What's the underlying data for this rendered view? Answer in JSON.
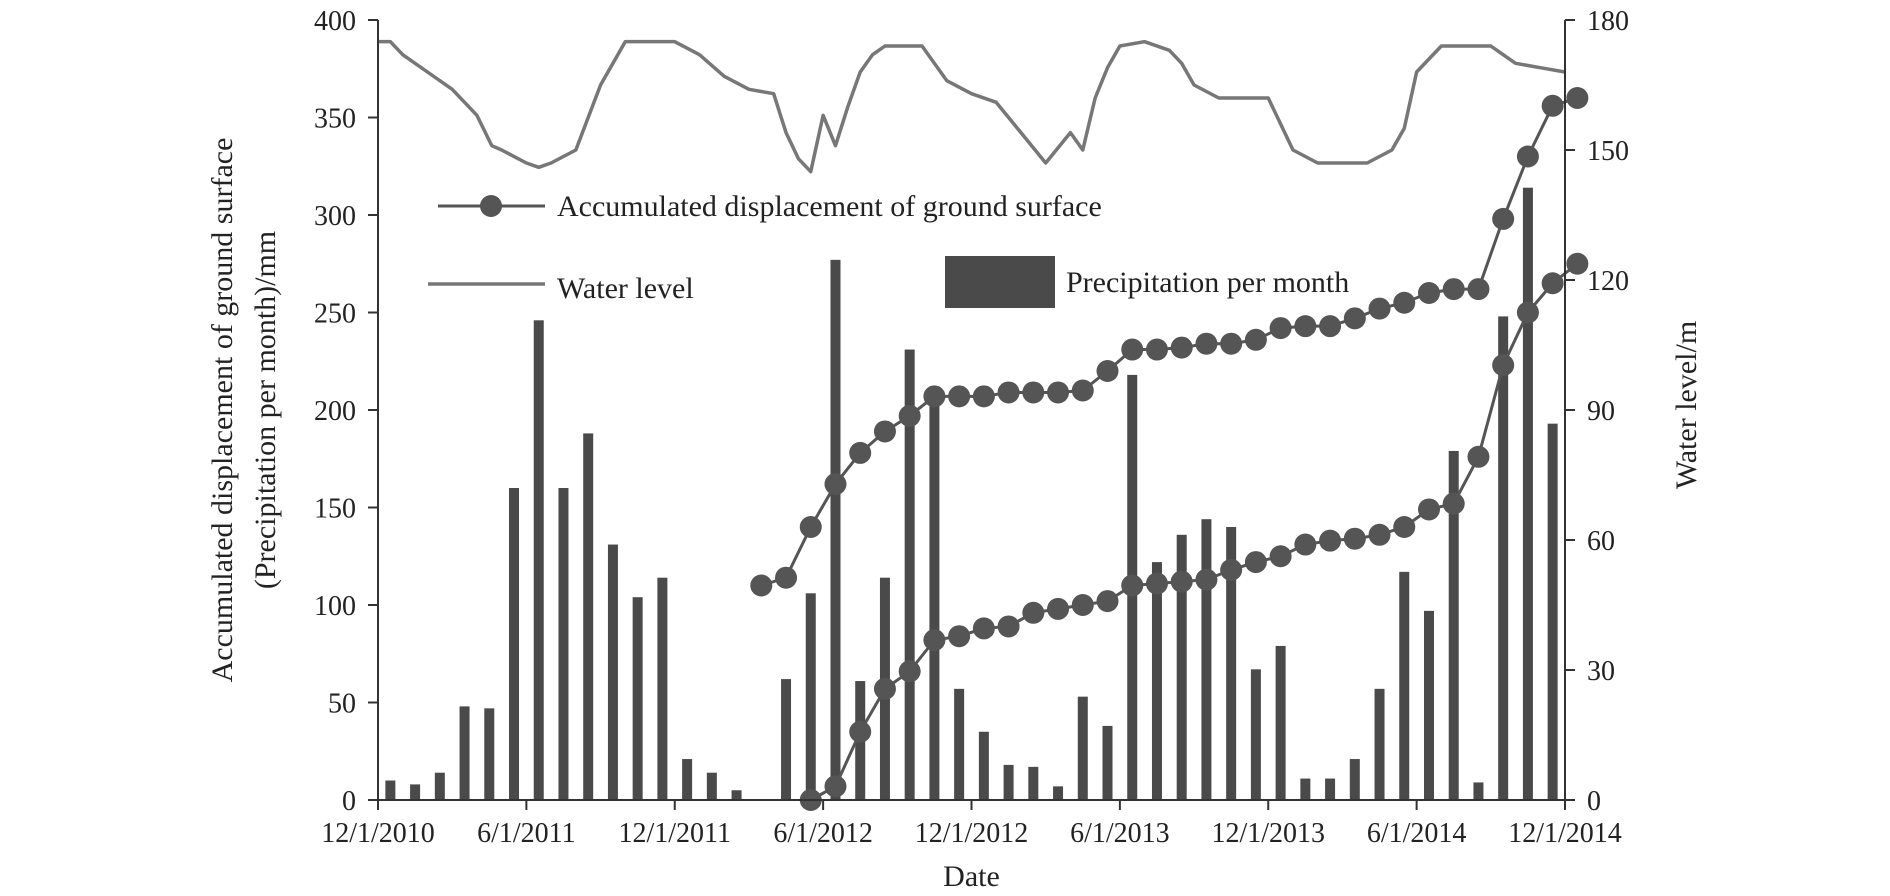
{
  "chart_data": {
    "type": "bar+line",
    "xlabel": "Date",
    "ylabel_left_line1": "Accumulated displacement of ground surface",
    "ylabel_left_line2": "(Precipitation per month)/mm",
    "ylabel_right": "Water level/m",
    "ylim_left": [
      0,
      400
    ],
    "ylim_right": [
      0,
      180
    ],
    "left_ticks": [
      "0",
      "50",
      "100",
      "150",
      "200",
      "250",
      "300",
      "350",
      "400"
    ],
    "right_ticks": [
      "0",
      "30",
      "60",
      "90",
      "120",
      "150",
      "180"
    ],
    "x_tick_labels": [
      "12/1/2010",
      "6/1/2011",
      "12/1/2011",
      "6/1/2012",
      "12/1/2012",
      "6/1/2013",
      "12/1/2013",
      "6/1/2014",
      "12/1/2014"
    ],
    "x_tick_months": [
      0,
      6,
      12,
      18,
      24,
      30,
      36,
      42,
      48
    ],
    "grid": false,
    "colors": {
      "bars": "#4a4a4a",
      "displacement": "#555555",
      "water_level": "#777777"
    },
    "series": [
      {
        "name": "Precipitation per month",
        "kind": "bar",
        "axis": "left",
        "months": [
          0,
          1,
          2,
          3,
          4,
          5,
          6,
          7,
          8,
          9,
          10,
          11,
          12,
          13,
          14,
          15,
          16,
          17,
          18,
          19,
          20,
          21,
          22,
          23,
          24,
          25,
          26,
          27,
          28,
          29,
          30,
          31,
          32,
          33,
          34,
          35,
          36,
          37,
          38,
          39,
          40,
          41,
          42,
          43,
          44,
          45,
          46,
          47
        ],
        "values": [
          10,
          8,
          14,
          48,
          47,
          160,
          246,
          160,
          188,
          131,
          104,
          114,
          21,
          14,
          5,
          0,
          62,
          106,
          277,
          61,
          114,
          231,
          211,
          57,
          35,
          18,
          17,
          7,
          53,
          38,
          218,
          122,
          136,
          144,
          140,
          67,
          79,
          11,
          11,
          21,
          57,
          117,
          97,
          179,
          9,
          248,
          314,
          193
        ]
      },
      {
        "name": "Accumulated displacement of ground surface",
        "kind": "line+marker",
        "axis": "left",
        "label": "Accumulated displacement of ground surface",
        "segments": [
          {
            "months": [
              15.5,
              16.5,
              17.5,
              18.5,
              19.5,
              20.5,
              21.5,
              22.5,
              23.5,
              24.5,
              25.5,
              26.5,
              27.5,
              28.5,
              29.5,
              30.5,
              31.5,
              32.5,
              33.5,
              34.5,
              35.5,
              36.5,
              37.5,
              38.5,
              39.5,
              40.5,
              41.5,
              42.5,
              43.5,
              44.5,
              45.5,
              46.5,
              47.5,
              48.5
            ],
            "values": [
              110,
              114,
              140,
              162,
              178,
              189,
              197,
              207,
              207,
              207,
              209,
              209,
              209,
              210,
              220,
              231,
              231,
              232,
              234,
              234,
              236,
              242,
              243,
              243,
              247,
              252,
              255,
              260,
              262,
              262,
              298,
              330,
              356,
              360
            ]
          },
          {
            "months": [
              17.5,
              18.5,
              19.5,
              20.5,
              21.5,
              22.5,
              23.5,
              24.5,
              25.5,
              26.5,
              27.5,
              28.5,
              29.5,
              30.5,
              31.5,
              32.5,
              33.5,
              34.5,
              35.5,
              36.5,
              37.5,
              38.5,
              39.5,
              40.5,
              41.5,
              42.5,
              43.5,
              44.5,
              45.5,
              46.5,
              47.5,
              48.5
            ],
            "values": [
              0,
              7,
              35,
              57,
              66,
              82,
              84,
              88,
              89,
              96,
              98,
              100,
              102,
              110,
              111,
              112,
              113,
              118,
              122,
              125,
              131,
              133,
              134,
              136,
              140,
              149,
              152,
              176,
              223,
              250,
              265,
              275
            ]
          }
        ]
      },
      {
        "name": "Water level",
        "kind": "line",
        "axis": "right",
        "label": "Water level",
        "months": [
          0,
          0.5,
          1,
          2,
          3,
          4,
          4.6,
          5,
          6,
          6.5,
          7,
          8,
          9,
          10,
          11,
          12,
          13,
          14,
          15,
          16,
          16.5,
          17,
          17.5,
          18,
          18.5,
          19,
          19.5,
          20,
          20.5,
          21,
          21.5,
          22,
          22.5,
          23,
          24,
          25,
          26,
          27,
          28,
          28.5,
          29,
          29.5,
          30,
          31,
          32,
          32.5,
          33,
          34,
          35,
          36,
          37,
          38,
          39,
          40,
          41,
          41.5,
          42,
          43,
          43.5,
          44,
          44.5,
          45,
          45.5,
          46,
          47,
          48
        ],
        "values": [
          175,
          175,
          172,
          168,
          164,
          158,
          151,
          150,
          147,
          146,
          147,
          150,
          165,
          175,
          175,
          175,
          172,
          167,
          164,
          163,
          154,
          148,
          145,
          158,
          151,
          160,
          168,
          172,
          174,
          174,
          174,
          174,
          170,
          166,
          163,
          161,
          154,
          147,
          154,
          150,
          162,
          169,
          174,
          175,
          173,
          170,
          165,
          162,
          162,
          162,
          150,
          147,
          147,
          147,
          150,
          155,
          168,
          174,
          174,
          174,
          174,
          174,
          172,
          170,
          169,
          168
        ]
      }
    ],
    "legend": {
      "displacement": "Accumulated displacement of ground surface",
      "water_level": "Water level",
      "precipitation": "Precipitation per month"
    }
  }
}
